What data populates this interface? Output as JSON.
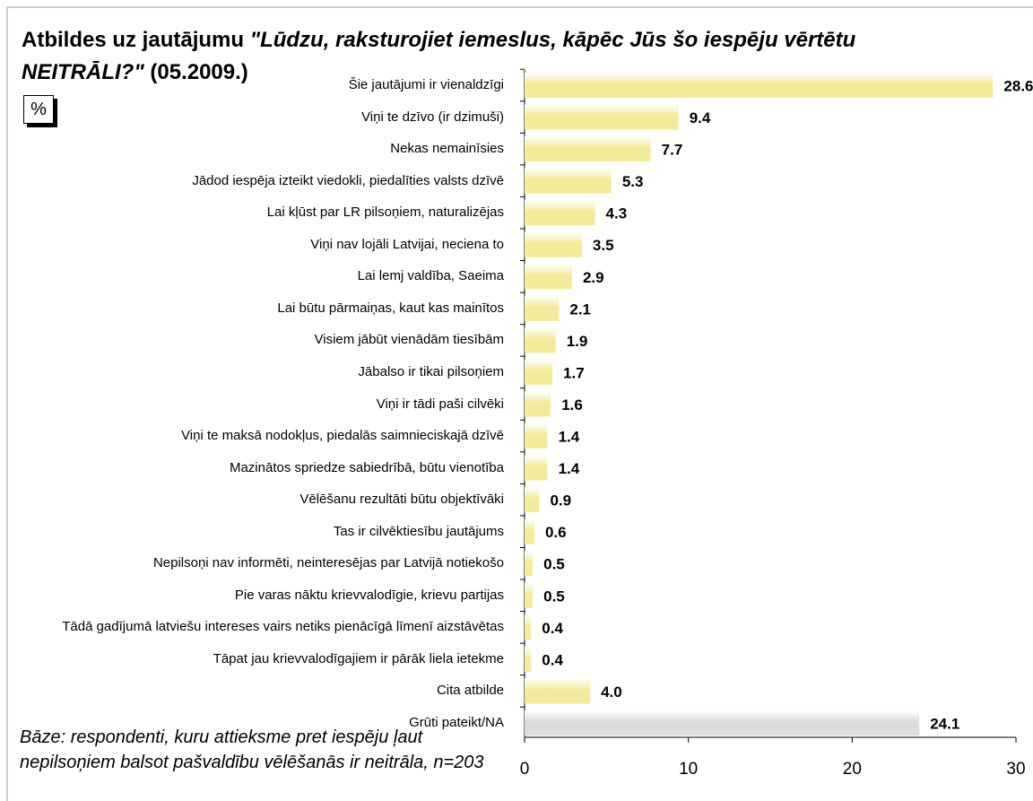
{
  "chart_data": {
    "type": "barh",
    "title_parts": [
      "Atbildes uz jautājumu",
      "\"Lūdzu, raksturojiet iemeslus, kāpēc Jūs šo iespēju vērtētu",
      "NEITRĀLI?\"",
      "(05.2009.)"
    ],
    "unit": "%",
    "note": "Bāze: respondenti, kuru attieksme pret iespēju ļaut nepilsoņiem balsot pašvaldību vēlēšanās ir neitrāla, n=203",
    "categories": [
      "Šie jautājumi ir vienaldzīgi",
      "Viņi te dzīvo (ir dzimuši)",
      "Nekas nemainīsies",
      "Jādod iespēja izteikt viedokli, piedalīties valsts dzīvē",
      "Lai kļūst par LR pilsoņiem, naturalizējas",
      "Viņi nav lojāli Latvijai, neciena to",
      "Lai lemj valdība, Saeima",
      "Lai būtu pārmaiņas, kaut kas mainītos",
      "Visiem jābūt vienādām tiesībām",
      "Jābalso ir tikai pilsoņiem",
      "Viņi ir tādi paši cilvēki",
      "Viņi te maksā nodokļus, piedalās saimnieciskajā dzīvē",
      "Mazinātos spriedze sabiedrībā, būtu vienotība",
      "Vēlēšanu rezultāti būtu objektīvāki",
      "Tas ir cilvēktiesību jautājums",
      "Nepilsoņi nav informēti, neinteresējas par Latvijā notiekošo",
      "Pie varas nāktu krievvalodīgie, krievu partijas",
      "Tādā gadījumā latviešu intereses vairs netiks pienācīgā līmenī aizstāvētas",
      "Tāpat jau krievvalodīgajiem ir pārāk liela ietekme",
      "Cita atbilde",
      "Grūti pateikt/NA"
    ],
    "values": [
      28.6,
      9.4,
      7.7,
      5.3,
      4.3,
      3.5,
      2.9,
      2.1,
      1.9,
      1.7,
      1.6,
      1.4,
      1.4,
      0.9,
      0.6,
      0.5,
      0.5,
      0.4,
      0.4,
      4.0,
      24.1
    ],
    "value_labels": [
      "28.6",
      "9.4",
      "7.7",
      "5.3",
      "4.3",
      "3.5",
      "2.9",
      "2.1",
      "1.9",
      "1.7",
      "1.6",
      "1.4",
      "1.4",
      "0.9",
      "0.6",
      "0.5",
      "0.5",
      "0.4",
      "0.4",
      "4.0",
      "24.1"
    ],
    "colors": [
      "#f3eb9c",
      "#f3eb9c",
      "#f3eb9c",
      "#f3eb9c",
      "#f3eb9c",
      "#f3eb9c",
      "#f3eb9c",
      "#f3eb9c",
      "#f3eb9c",
      "#f3eb9c",
      "#f3eb9c",
      "#f3eb9c",
      "#f3eb9c",
      "#f3eb9c",
      "#f3eb9c",
      "#f3eb9c",
      "#f3eb9c",
      "#f3eb9c",
      "#f3eb9c",
      "#f3eb9c",
      "#dcdcdc"
    ],
    "xlim": [
      0,
      30
    ],
    "xticks": [
      0,
      10,
      20,
      30
    ]
  }
}
